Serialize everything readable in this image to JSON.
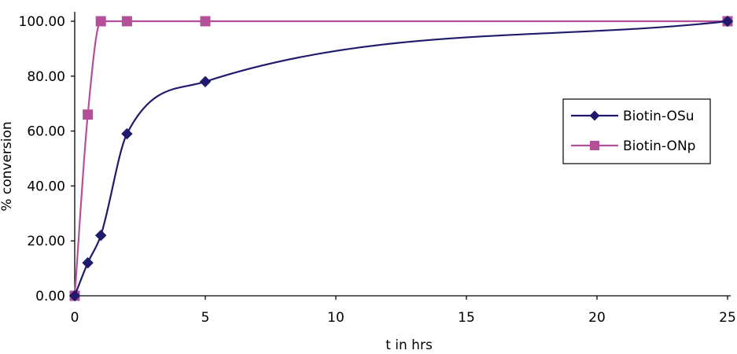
{
  "chart_data": {
    "type": "line",
    "title": "",
    "xlabel": "t in hrs",
    "ylabel": "% conversion",
    "xlim": [
      0,
      25
    ],
    "ylim": [
      0,
      100
    ],
    "x_ticks": [
      0,
      5,
      10,
      15,
      20,
      25
    ],
    "y_ticks": [
      0,
      20,
      40,
      60,
      80,
      100
    ],
    "x_tick_labels": [
      "0",
      "5",
      "10",
      "15",
      "20",
      "25"
    ],
    "y_tick_labels": [
      "0.00",
      "20.00",
      "40.00",
      "60.00",
      "80.00",
      "100.00"
    ],
    "grid": false,
    "smooth": true,
    "legend_position": "right",
    "series": [
      {
        "name": "Biotin-OSu",
        "color": "#1f1a6b",
        "marker": "diamond",
        "x": [
          0,
          0.5,
          1,
          2,
          5,
          25
        ],
        "y": [
          0,
          12,
          22,
          59,
          78,
          100
        ]
      },
      {
        "name": "Biotin-ONp",
        "color": "#b4509a",
        "marker": "square",
        "x": [
          0,
          0.5,
          1,
          2,
          5,
          25
        ],
        "y": [
          0,
          66,
          100,
          100,
          100,
          100
        ]
      }
    ]
  }
}
